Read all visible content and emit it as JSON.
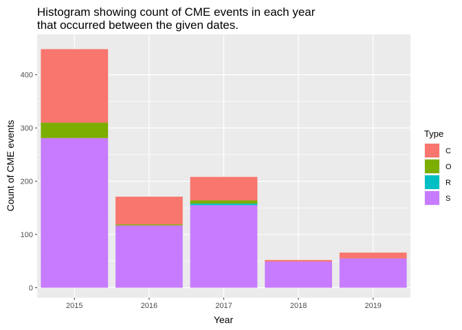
{
  "chart_data": {
    "type": "bar",
    "stacked": true,
    "title": "Histogram showing count of CME events in each year\nthat occurred between the given dates.",
    "xlabel": "Year",
    "ylabel": "Count of CME events",
    "categories": [
      "2015",
      "2016",
      "2017",
      "2018",
      "2019"
    ],
    "series": [
      {
        "name": "C",
        "color": "#F8766D",
        "values": [
          138,
          52,
          44,
          3,
          11
        ]
      },
      {
        "name": "O",
        "color": "#7CAE00",
        "values": [
          29,
          2,
          6,
          0,
          0
        ]
      },
      {
        "name": "R",
        "color": "#00BFC4",
        "values": [
          0,
          0,
          3,
          0,
          0
        ]
      },
      {
        "name": "S",
        "color": "#C77CFF",
        "values": [
          281,
          117,
          155,
          49,
          55
        ]
      }
    ],
    "stack_order_bottom_to_top": [
      "S",
      "R",
      "O",
      "C"
    ],
    "ylim": [
      0,
      450
    ],
    "yticks": [
      0,
      100,
      200,
      300,
      400
    ],
    "grid": true,
    "legend": {
      "title": "Type",
      "position": "right"
    },
    "panel_color": "#EBEBEB"
  }
}
